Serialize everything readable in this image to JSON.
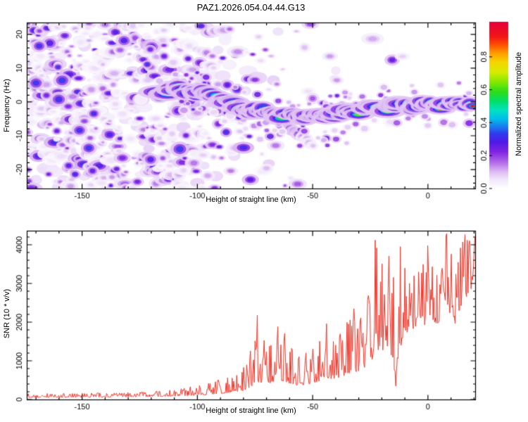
{
  "title": "PAZ1.2026.054.04.44.G13",
  "chart_data": [
    {
      "type": "heatmap",
      "name": "doppler-spectrogram",
      "xlabel": "Height of straight line (km)",
      "ylabel": "Frequency (Hz)",
      "xlim": [
        -174,
        20.5
      ],
      "ylim": [
        -25.6,
        23.5
      ],
      "xticks": [
        -150,
        -100,
        -50,
        0
      ],
      "yticks": [
        -20,
        -10,
        0,
        10,
        20
      ],
      "x_minor_step": 10,
      "y_minor_step": 2,
      "colorbar": {
        "label": "Normalized spectral amplitude",
        "ticks": [
          0.0,
          0.2,
          0.4,
          0.6,
          0.8
        ],
        "range": [
          0,
          1
        ]
      },
      "colormap_stops": [
        [
          0.0,
          "#ffffff"
        ],
        [
          0.05,
          "#f3e9fb"
        ],
        [
          0.1,
          "#dcbcf2"
        ],
        [
          0.16,
          "#b066e8"
        ],
        [
          0.22,
          "#8024e2"
        ],
        [
          0.28,
          "#501ae8"
        ],
        [
          0.33,
          "#2e3cee"
        ],
        [
          0.38,
          "#1689f0"
        ],
        [
          0.42,
          "#00c0e8"
        ],
        [
          0.47,
          "#00e2c2"
        ],
        [
          0.52,
          "#00df6e"
        ],
        [
          0.58,
          "#2cdd1c"
        ],
        [
          0.64,
          "#86e800"
        ],
        [
          0.7,
          "#d8ec00"
        ],
        [
          0.76,
          "#f6d400"
        ],
        [
          0.81,
          "#ff9f00"
        ],
        [
          0.86,
          "#ff5400"
        ],
        [
          0.91,
          "#f31616"
        ],
        [
          1.0,
          "#e4003e"
        ]
      ],
      "noise_density": [
        [
          -174,
          1.0
        ],
        [
          -130,
          1.0
        ],
        [
          -118,
          0.95
        ],
        [
          -105,
          0.8
        ],
        [
          -95,
          0.6
        ],
        [
          -85,
          0.4
        ],
        [
          -75,
          0.22
        ],
        [
          -65,
          0.14
        ],
        [
          -55,
          0.09
        ],
        [
          -45,
          0.06
        ],
        [
          -35,
          0.04
        ],
        [
          -25,
          0.02
        ],
        [
          -15,
          0.01
        ],
        [
          20,
          0.005
        ]
      ],
      "ridge": [
        [
          -117,
          2.2,
          0.42
        ],
        [
          -114,
          3.0,
          0.5
        ],
        [
          -111,
          3.8,
          0.48
        ],
        [
          -108,
          4.0,
          0.62
        ],
        [
          -105,
          3.2,
          0.5
        ],
        [
          -102,
          2.6,
          0.45
        ],
        [
          -99,
          3.0,
          0.55
        ],
        [
          -96,
          2.4,
          0.5
        ],
        [
          -93,
          1.6,
          0.45
        ],
        [
          -90,
          0.8,
          0.5
        ],
        [
          -87,
          0.2,
          0.52
        ],
        [
          -84,
          -0.6,
          0.48
        ],
        [
          -81,
          -1.6,
          0.5
        ],
        [
          -78,
          -2.2,
          0.55
        ],
        [
          -75,
          -2.6,
          0.5
        ],
        [
          -72,
          -2.9,
          0.45
        ],
        [
          -69,
          -3.2,
          0.55
        ],
        [
          -66,
          -3.5,
          0.5
        ],
        [
          -63,
          -3.7,
          0.58
        ],
        [
          -60,
          -3.9,
          0.52
        ],
        [
          -57,
          -4.2,
          0.48
        ],
        [
          -54,
          -4.4,
          0.55
        ],
        [
          -51,
          -4.5,
          0.6
        ],
        [
          -48,
          -4.5,
          0.52
        ],
        [
          -45,
          -4.3,
          0.48
        ],
        [
          -42,
          -4.0,
          0.52
        ],
        [
          -39,
          -3.7,
          0.55
        ],
        [
          -36,
          -3.3,
          0.5
        ],
        [
          -33,
          -2.9,
          0.62
        ],
        [
          -30,
          -2.6,
          0.68
        ],
        [
          -27,
          -2.3,
          0.62
        ],
        [
          -24,
          -2.0,
          0.72
        ],
        [
          -21,
          -1.8,
          0.85
        ],
        [
          -18,
          -1.6,
          0.75
        ],
        [
          -15,
          -1.3,
          0.7
        ],
        [
          -12,
          -1.1,
          0.9
        ],
        [
          -9,
          -1.0,
          0.82
        ],
        [
          -6,
          -0.9,
          0.78
        ],
        [
          -3,
          -0.85,
          0.9
        ],
        [
          0,
          -0.8,
          0.84
        ],
        [
          3,
          -0.7,
          0.9
        ],
        [
          6,
          -0.65,
          0.94
        ],
        [
          9,
          -0.6,
          0.88
        ],
        [
          12,
          -0.55,
          0.93
        ],
        [
          15,
          -0.5,
          0.88
        ],
        [
          18,
          -0.45,
          0.92
        ],
        [
          20.5,
          -0.4,
          0.9
        ]
      ],
      "secondary_tail": [
        [
          -65,
          -4.5,
          0.26
        ],
        [
          -62,
          -6.5,
          0.3
        ],
        [
          -59,
          -8.0,
          0.26
        ],
        [
          -56,
          -9.5,
          0.2
        ],
        [
          -53,
          -11.0,
          0.14
        ],
        [
          -50,
          -12.5,
          0.08
        ]
      ]
    },
    {
      "type": "line",
      "name": "snr-profile",
      "xlabel": "Height of straight line (km)",
      "ylabel": "SNR (10 * v/v)",
      "xlim": [
        -174,
        20.5
      ],
      "ylim": [
        0,
        4364
      ],
      "xticks": [
        -150,
        -100,
        -50,
        0
      ],
      "yticks": [
        0,
        1000,
        2000,
        3000,
        4000
      ],
      "x_minor_step": 10,
      "y_minor_step": 200,
      "color": "#ee3124",
      "envelope": [
        [
          -174,
          40,
          150
        ],
        [
          -165,
          40,
          155
        ],
        [
          -158,
          45,
          150
        ],
        [
          -150,
          45,
          160
        ],
        [
          -143,
          50,
          170
        ],
        [
          -136,
          50,
          165
        ],
        [
          -130,
          55,
          180
        ],
        [
          -124,
          55,
          190
        ],
        [
          -118,
          60,
          210
        ],
        [
          -112,
          65,
          240
        ],
        [
          -107,
          70,
          280
        ],
        [
          -103,
          75,
          330
        ],
        [
          -99,
          85,
          360
        ],
        [
          -95,
          95,
          420
        ],
        [
          -91,
          110,
          500
        ],
        [
          -87,
          130,
          560
        ],
        [
          -83,
          150,
          620
        ],
        [
          -80,
          160,
          820
        ],
        [
          -77,
          220,
          1250
        ],
        [
          -74,
          260,
          2180
        ],
        [
          -71,
          300,
          1520
        ],
        [
          -68,
          320,
          1400
        ],
        [
          -65,
          350,
          1900
        ],
        [
          -62,
          320,
          1700
        ],
        [
          -59,
          300,
          1300
        ],
        [
          -56,
          280,
          1100
        ],
        [
          -53,
          300,
          1200
        ],
        [
          -50,
          310,
          1300
        ],
        [
          -47,
          350,
          1500
        ],
        [
          -44,
          400,
          1960
        ],
        [
          -41,
          420,
          1500
        ],
        [
          -38,
          450,
          1700
        ],
        [
          -35,
          500,
          2000
        ],
        [
          -32,
          520,
          2360
        ],
        [
          -29,
          600,
          2100
        ],
        [
          -26,
          700,
          2600
        ],
        [
          -23,
          800,
          4150
        ],
        [
          -20,
          1000,
          3500
        ],
        [
          -17,
          1150,
          3730
        ],
        [
          -14,
          330,
          3000,
          -1
        ],
        [
          -12,
          1000,
          3960
        ],
        [
          -10,
          1500,
          3400
        ],
        [
          -8,
          1600,
          3000
        ],
        [
          -6,
          1700,
          3200
        ],
        [
          -4,
          1800,
          3300
        ],
        [
          -2,
          1700,
          3500
        ],
        [
          0,
          1800,
          4000
        ],
        [
          2,
          1900,
          3400
        ],
        [
          4,
          1800,
          3200
        ],
        [
          6,
          2000,
          3300
        ],
        [
          8,
          2200,
          4330
        ],
        [
          10,
          2000,
          3800
        ],
        [
          12,
          1800,
          3200
        ],
        [
          14,
          2200,
          3900
        ],
        [
          16,
          2400,
          4270
        ],
        [
          18,
          2600,
          4100
        ],
        [
          20.5,
          3000,
          4200
        ]
      ]
    }
  ]
}
